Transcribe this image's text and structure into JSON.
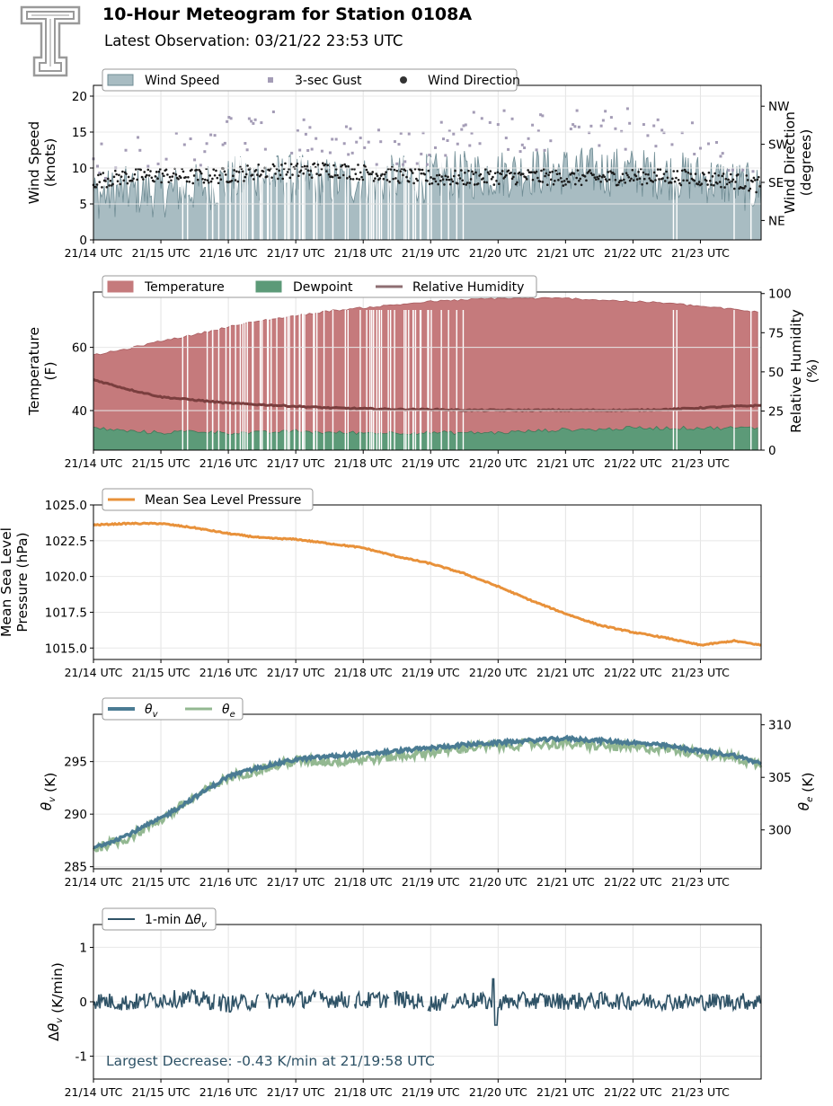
{
  "header": {
    "title": "10-Hour Meteogram for Station 0108A",
    "subtitle": "Latest Observation: 03/21/22 23:53 UTC",
    "logo_icon": "texas-tech-double-t-logo-icon"
  },
  "colors": {
    "wind_speed": "#a8bcc2",
    "wind_speed_line": "#6f8c94",
    "gust": "#a49cb6",
    "direction": "#1a1a1a",
    "temperature": "#c57a7c",
    "dewpoint": "#5c9a78",
    "rh": "#7a3e3e",
    "pressure": "#e8913a",
    "theta_v": "#4a7b93",
    "theta_e": "#93b891",
    "dtheta": "#2e5266",
    "annotation": "#2e5266"
  },
  "time_ticks": [
    "21/14 UTC",
    "21/15 UTC",
    "21/16 UTC",
    "21/17 UTC",
    "21/18 UTC",
    "21/19 UTC",
    "21/20 UTC",
    "21/21 UTC",
    "21/22 UTC",
    "21/23 UTC"
  ],
  "chart_data": [
    {
      "id": "wind",
      "type": "area",
      "legend": [
        "Wind Speed",
        "3-sec Gust",
        "Wind Direction"
      ],
      "ylabel_lines": [
        "Wind Speed",
        "(knots)"
      ],
      "y2label_lines": [
        "Wind Direction",
        "(degrees)"
      ],
      "ylim": [
        0,
        21.5
      ],
      "yticks": [
        "0",
        "5",
        "10",
        "15",
        "20"
      ],
      "y2ticks": [
        "NE",
        "SE",
        "SW",
        "NW"
      ],
      "y2_ticks_in_y_units": [
        2.7,
        8.0,
        13.3,
        18.6
      ],
      "x_hours_range": [
        0,
        9.9
      ],
      "series": [
        {
          "name": "Wind Speed",
          "x": [
            0,
            0.5,
            1,
            1.5,
            2,
            2.5,
            3,
            3.5,
            4,
            4.5,
            5,
            5.5,
            6,
            6.5,
            7,
            7.5,
            8,
            8.5,
            9,
            9.5,
            9.9
          ],
          "values": [
            6.2,
            6.8,
            6.5,
            7.2,
            8.0,
            8.8,
            8.5,
            8.0,
            8.2,
            8.4,
            8.6,
            9.0,
            9.2,
            9.5,
            9.6,
            9.5,
            9.4,
            9.0,
            8.6,
            7.8,
            6.8
          ]
        },
        {
          "name": "3-sec Gust",
          "x": [
            0,
            0.5,
            1,
            1.5,
            2,
            2.5,
            3,
            3.5,
            4,
            4.5,
            5,
            5.5,
            6,
            6.5,
            7,
            7.5,
            8,
            8.5,
            9,
            9.5,
            9.9
          ],
          "values": [
            10.5,
            11.5,
            11.5,
            12.5,
            14.5,
            15.5,
            15.0,
            13.5,
            13.0,
            13.5,
            13.0,
            15.0,
            15.5,
            15.0,
            15.5,
            15.0,
            15.5,
            14.5,
            13.5,
            12.5,
            11.0
          ]
        },
        {
          "name": "Wind Direction",
          "x": [
            0,
            0.5,
            1,
            1.5,
            2,
            2.5,
            3,
            3.5,
            4,
            4.5,
            5,
            5.5,
            6,
            6.5,
            7,
            7.5,
            8,
            8.5,
            9,
            9.5,
            9.9
          ],
          "values": [
            8.2,
            8.8,
            9.0,
            8.8,
            9.0,
            9.6,
            9.6,
            9.8,
            9.4,
            9.0,
            8.6,
            8.6,
            8.8,
            8.8,
            8.6,
            8.6,
            8.8,
            8.8,
            8.6,
            8.2,
            7.6
          ]
        }
      ]
    },
    {
      "id": "temp",
      "type": "area",
      "legend": [
        "Temperature",
        "Dewpoint",
        "Relative Humidity"
      ],
      "ylabel_lines": [
        "Temperature",
        "(F)"
      ],
      "y2label_lines": [
        "Relative Humidity",
        "(%)"
      ],
      "ylim": [
        27.5,
        77.5
      ],
      "yticks": [
        "40",
        "60"
      ],
      "y2lim": [
        0,
        101
      ],
      "y2ticks": [
        "0",
        "25",
        "50",
        "75",
        "100"
      ],
      "x_hours_range": [
        0,
        9.9
      ],
      "series": [
        {
          "name": "Temperature",
          "x": [
            0,
            0.5,
            1,
            1.5,
            2,
            2.5,
            3,
            3.5,
            4,
            4.5,
            5,
            5.5,
            6,
            6.5,
            7,
            7.5,
            8,
            8.5,
            9,
            9.5,
            9.9
          ],
          "values": [
            57.5,
            59.5,
            62.0,
            64.0,
            66.5,
            68.5,
            70.0,
            71.5,
            72.5,
            73.5,
            74.5,
            75.0,
            75.5,
            75.5,
            75.5,
            75.0,
            74.5,
            74.0,
            73.0,
            72.0,
            71.0
          ]
        },
        {
          "name": "Dewpoint",
          "x": [
            0,
            0.5,
            1,
            1.5,
            2,
            2.5,
            3,
            3.5,
            4,
            4.5,
            5,
            5.5,
            6,
            6.5,
            7,
            7.5,
            8,
            8.5,
            9,
            9.5,
            9.9
          ],
          "values": [
            34.5,
            33.5,
            33.0,
            33.5,
            33.0,
            33.0,
            33.5,
            33.0,
            33.0,
            33.0,
            33.0,
            33.0,
            33.0,
            33.5,
            34.0,
            34.0,
            34.5,
            34.5,
            34.5,
            34.5,
            34.5
          ]
        },
        {
          "name": "Relative Humidity",
          "x": [
            0,
            0.5,
            1,
            1.5,
            2,
            2.5,
            3,
            3.5,
            4,
            4.5,
            5,
            5.5,
            6,
            6.5,
            7,
            7.5,
            8,
            8.5,
            9,
            9.5,
            9.9
          ],
          "values": [
            45,
            39,
            34,
            32,
            30,
            29,
            28,
            27,
            26.5,
            26,
            26,
            25.5,
            25.5,
            25.5,
            25.5,
            25.5,
            25.5,
            26,
            27,
            28,
            28.5
          ]
        }
      ]
    },
    {
      "id": "pressure",
      "type": "line",
      "legend": [
        "Mean Sea Level Pressure"
      ],
      "ylabel_lines": [
        "Mean Sea Level",
        "Pressure (hPa)"
      ],
      "ylim": [
        1014.2,
        1025.0
      ],
      "yticks": [
        "1015.0",
        "1017.5",
        "1020.0",
        "1022.5",
        "1025.0"
      ],
      "x_hours_range": [
        0,
        9.9
      ],
      "series": [
        {
          "name": "Mean Sea Level Pressure",
          "x": [
            0,
            0.5,
            1,
            1.5,
            2,
            2.5,
            3,
            3.5,
            4,
            4.5,
            5,
            5.5,
            6,
            6.5,
            7,
            7.5,
            8,
            8.5,
            9,
            9.5,
            9.9
          ],
          "values": [
            1023.6,
            1023.7,
            1023.7,
            1023.4,
            1023.0,
            1022.7,
            1022.6,
            1022.3,
            1022.0,
            1021.4,
            1020.9,
            1020.2,
            1019.3,
            1018.3,
            1017.4,
            1016.6,
            1016.1,
            1015.7,
            1015.2,
            1015.5,
            1015.2
          ]
        }
      ]
    },
    {
      "id": "theta",
      "type": "line",
      "legend": [
        "θv",
        "θe"
      ],
      "ylabel": "θv (K)",
      "y2label": "θe (K)",
      "ylim": [
        284.8,
        299.5
      ],
      "yticks": [
        "285",
        "290",
        "295"
      ],
      "y2lim": [
        296.3,
        311.0
      ],
      "y2ticks": [
        "300",
        "305",
        "310"
      ],
      "x_hours_range": [
        0,
        9.9
      ],
      "series": [
        {
          "name": "θv",
          "x": [
            0,
            0.5,
            1,
            1.5,
            2,
            2.5,
            3,
            3.5,
            4,
            4.5,
            5,
            5.5,
            6,
            6.5,
            7,
            7.5,
            8,
            8.5,
            9,
            9.5,
            9.9
          ],
          "values": [
            286.8,
            288.0,
            289.6,
            291.6,
            293.6,
            294.5,
            295.2,
            295.5,
            295.7,
            296.0,
            296.3,
            296.6,
            296.8,
            297.0,
            297.2,
            297.0,
            296.8,
            296.5,
            296.0,
            295.6,
            294.8
          ]
        },
        {
          "name": "θe",
          "x": [
            0,
            0.5,
            1,
            1.5,
            2,
            2.5,
            3,
            3.5,
            4,
            4.5,
            5,
            5.5,
            6,
            6.5,
            7,
            7.5,
            8,
            8.5,
            9,
            9.5,
            9.9
          ],
          "values": [
            298.2,
            299.2,
            301.0,
            303.1,
            305.0,
            305.8,
            306.6,
            306.5,
            306.7,
            307.0,
            307.4,
            307.8,
            308.0,
            308.2,
            308.2,
            308.0,
            307.8,
            307.8,
            307.3,
            306.9,
            306.2
          ]
        }
      ]
    },
    {
      "id": "dtheta",
      "type": "line",
      "legend": [
        "1-min Δθv"
      ],
      "ylabel": "Δθv (K/min)",
      "ylim": [
        -1.42,
        1.42
      ],
      "yticks": [
        "-1",
        "0",
        "1"
      ],
      "annotation": "Largest Decrease: -0.43 K/min at 21/19:58 UTC",
      "x_hours_range": [
        0,
        9.9
      ],
      "series": [
        {
          "name": "1-min Δθv",
          "x": [
            0,
            0.5,
            1,
            1.5,
            2,
            2.5,
            3,
            3.5,
            4,
            4.5,
            5,
            5.5,
            6,
            6.5,
            7,
            7.5,
            8,
            8.5,
            9,
            9.5,
            9.9
          ],
          "values": [
            0.03,
            -0.02,
            0.05,
            0.06,
            -0.04,
            0.02,
            0.05,
            0.05,
            0.02,
            0.06,
            -0.03,
            0.04,
            -0.02,
            0.03,
            0.01,
            0.02,
            0.01,
            0.01,
            0.0,
            0.01,
            0.0
          ]
        }
      ]
    }
  ]
}
